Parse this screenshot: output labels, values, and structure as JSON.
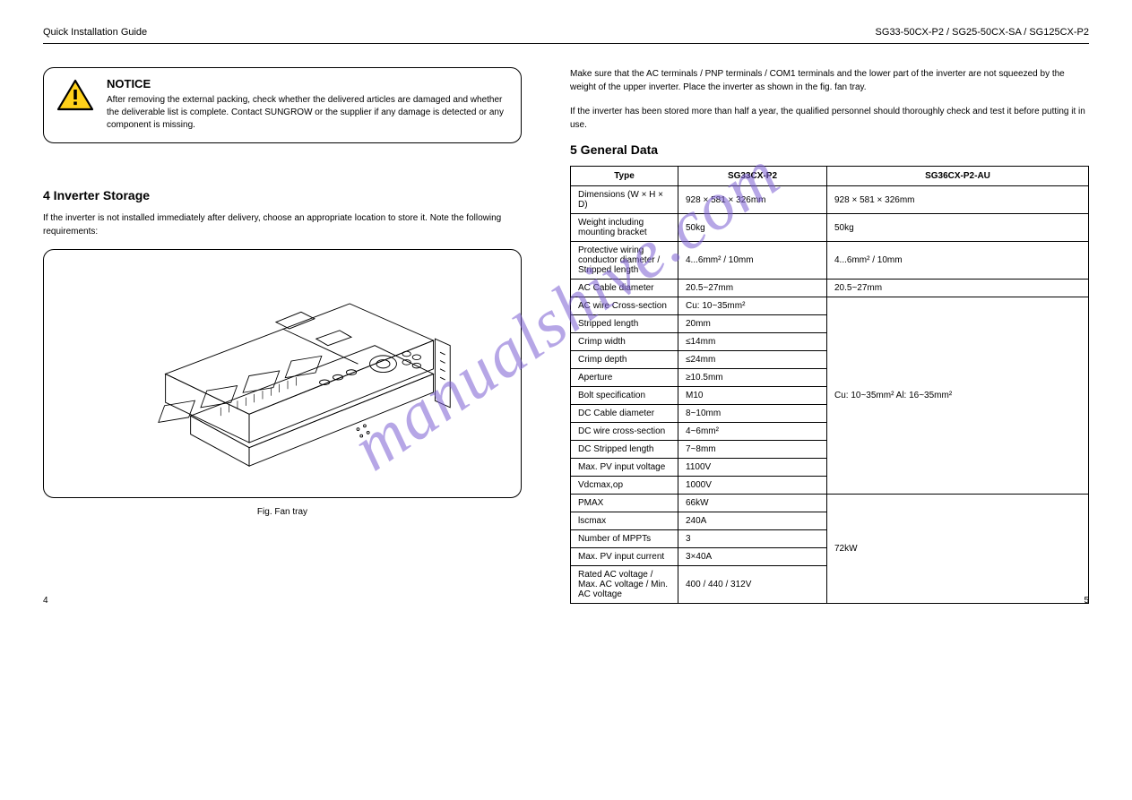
{
  "header": {
    "left": "Quick Installation Guide",
    "right": "SG33-50CX-P2 / SG25-50CX-SA / SG125CX-P2"
  },
  "notice": {
    "title": "NOTICE",
    "text": "After removing the external packing, check whether the delivered articles are damaged and whether the deliverable list is complete. Contact SUNGROW or the supplier if any damage is detected or any component is missing.",
    "icon_colors": {
      "outline": "#000000",
      "fill": "#ffd11a",
      "mark": "#000000"
    }
  },
  "left_column": {
    "heading": "4 Inverter Storage",
    "p1": "If the inverter is not installed immediately after delivery, choose an appropriate location to store it. Note the following requirements:",
    "caption": "Fig. Fan tray"
  },
  "right_column": {
    "p1": "Make sure that the AC terminals / PNP terminals / COM1 terminals and the lower part of the inverter are not squeezed by the weight of the upper inverter. Place the inverter as shown in the fig. fan tray.",
    "p2": "If the inverter has been stored more than half a year, the qualified personnel should thoroughly check and test it before putting it in use.",
    "heading": "5 General Data",
    "table": {
      "columns": [
        "Type",
        "SG33CX-P2",
        "SG36CX-P2-AU"
      ],
      "rows": [
        [
          "Dimensions (W × H × D)",
          "928 × 581 × 326mm",
          "928 × 581 × 326mm"
        ],
        [
          "Weight including mounting bracket",
          "50kg",
          "50kg"
        ],
        [
          "Protective wiring conductor diameter / Stripped length",
          "4...6mm² / 10mm",
          "4...6mm² / 10mm"
        ],
        [
          "AC Cable diameter",
          "20.5~27mm",
          "20.5~27mm"
        ],
        [
          "AC wire Cross-section",
          "Cu: 10~35mm²",
          "Cu: 10~35mm²  Al: 16~35mm²"
        ],
        [
          "Stripped length",
          "20mm",
          ""
        ],
        [
          "Crimp width",
          "≤14mm",
          ""
        ],
        [
          "Crimp depth",
          "≤24mm",
          ""
        ],
        [
          "Aperture",
          "≥10.5mm",
          ""
        ],
        [
          "Bolt specification",
          "M10",
          ""
        ],
        [
          "DC Cable diameter",
          "8~10mm",
          ""
        ],
        [
          "DC wire cross-section",
          "4~6mm²",
          ""
        ],
        [
          "DC Stripped length",
          "7~8mm",
          ""
        ],
        [
          "Max. PV input voltage",
          "1100V",
          ""
        ],
        [
          "Vdcmax,op",
          "1000V",
          ""
        ],
        [
          "PMAX",
          "66kW",
          "72kW"
        ],
        [
          "lscmax",
          "240A",
          ""
        ],
        [
          "Number of MPPTs",
          "3",
          ""
        ],
        [
          "Max. PV input current",
          "3×40A",
          ""
        ],
        [
          "Rated AC voltage / Max. AC voltage / Min. AC voltage",
          "400 / 440 / 312V",
          ""
        ]
      ]
    }
  },
  "watermark": "manualshive.com",
  "page_left": "4",
  "page_right": "5"
}
